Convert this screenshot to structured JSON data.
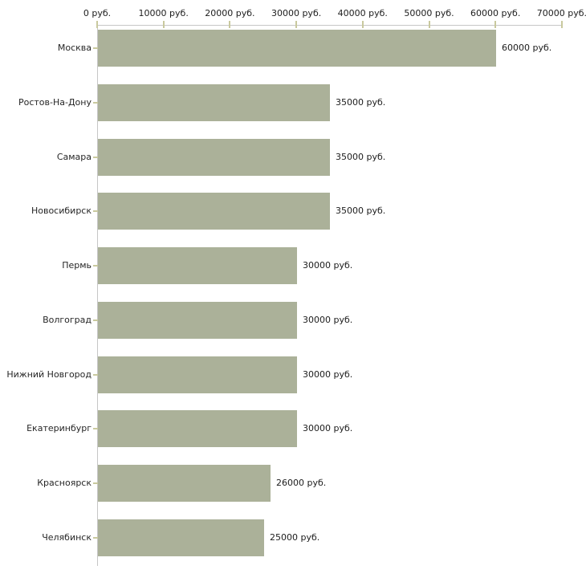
{
  "chart_data": {
    "type": "bar",
    "orientation": "horizontal",
    "title": "",
    "unit": "руб.",
    "categories": [
      "Москва",
      "Ростов-На-Дону",
      "Самара",
      "Новосибирск",
      "Пермь",
      "Волгоград",
      "Нижний Новгород",
      "Екатеринбург",
      "Красноярск",
      "Челябинск"
    ],
    "values": [
      60000,
      35000,
      35000,
      35000,
      30000,
      30000,
      30000,
      30000,
      26000,
      25000
    ],
    "value_labels": [
      "60000 руб.",
      "35000 руб.",
      "35000 руб.",
      "35000 руб.",
      "30000 руб.",
      "30000 руб.",
      "30000 руб.",
      "30000 руб.",
      "26000 руб.",
      "25000 руб."
    ],
    "x_axis": {
      "position": "top",
      "xlim": [
        0,
        70000
      ],
      "ticks": [
        0,
        10000,
        20000,
        30000,
        40000,
        50000,
        60000,
        70000
      ],
      "tick_labels": [
        "0 руб.",
        "10000 руб.",
        "20000 руб.",
        "30000 руб.",
        "40000 руб.",
        "50000 руб.",
        "60000 руб.",
        "70000 руб."
      ]
    },
    "grid": false,
    "legend": false,
    "colors": {
      "bar": "#abb199",
      "axis_line": "#c6c6c6",
      "tick_mark": "#c9c99e",
      "text": "#1c1c1c"
    }
  }
}
